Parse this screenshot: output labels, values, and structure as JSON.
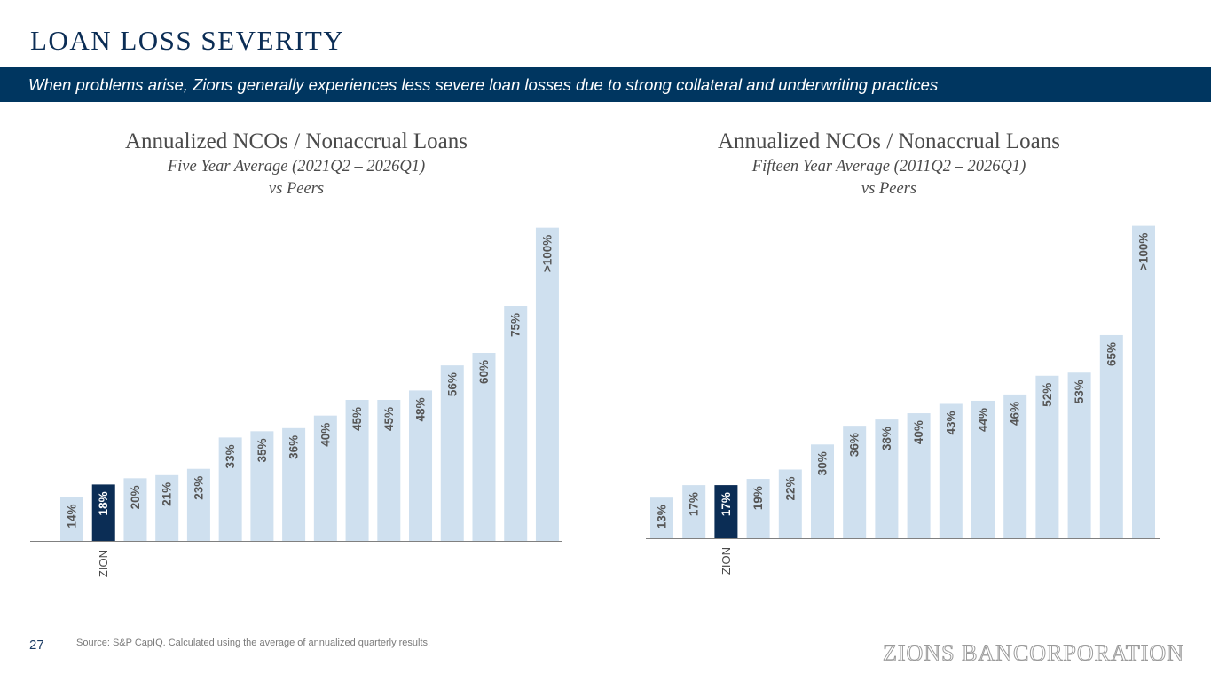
{
  "header": {
    "title": "LOAN LOSS SEVERITY",
    "banner": "When problems arise, Zions generally experiences less severe loan losses due to strong collateral and underwriting practices"
  },
  "colors": {
    "bar": "#cfe0ef",
    "highlight": "#0b2d55",
    "label": "#555555",
    "axis": "#808080"
  },
  "chart_data": [
    {
      "type": "bar",
      "title": "Annualized NCOs / Nonaccrual Loans",
      "subtitle": "Five Year Average (2021Q2 – 2026Q1)",
      "subtitle2": "vs Peers",
      "highlight_label": "ZION",
      "highlight_index": 1,
      "labels": [
        "14%",
        "18%",
        "20%",
        "21%",
        "23%",
        "33%",
        "35%",
        "36%",
        "40%",
        "45%",
        "45%",
        "48%",
        "56%",
        "60%",
        "75%",
        ">100%"
      ],
      "values": [
        14,
        18,
        20,
        21,
        23,
        33,
        35,
        36,
        40,
        45,
        45,
        48,
        56,
        60,
        75,
        100
      ],
      "ylim": [
        0,
        105
      ],
      "grid": false
    },
    {
      "type": "bar",
      "title": "Annualized NCOs / Nonaccrual Loans",
      "subtitle": "Fifteen Year Average (2011Q2 – 2026Q1)",
      "subtitle2": "vs Peers",
      "highlight_label": "ZION",
      "highlight_index": 2,
      "labels": [
        "13%",
        "17%",
        "17%",
        "19%",
        "22%",
        "30%",
        "36%",
        "38%",
        "40%",
        "43%",
        "44%",
        "46%",
        "52%",
        "53%",
        "65%",
        ">100%"
      ],
      "values": [
        13,
        17,
        17,
        19,
        22,
        30,
        36,
        38,
        40,
        43,
        44,
        46,
        52,
        53,
        65,
        100
      ],
      "ylim": [
        0,
        105
      ],
      "grid": false
    }
  ],
  "footer": {
    "page_number": "27",
    "source": "Source: S&P CapIQ. Calculated using the average of annualized quarterly results.",
    "logo": "ZIONS BANCORPORATION"
  }
}
